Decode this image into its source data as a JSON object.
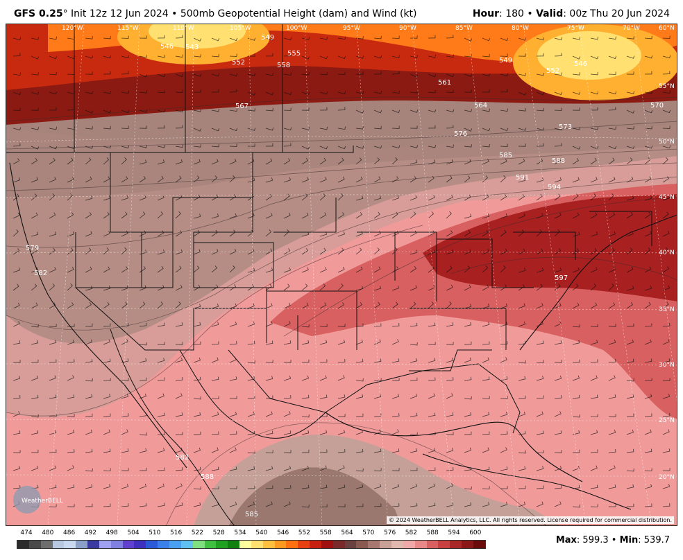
{
  "header": {
    "model": "GFS 0.25",
    "deg": "°",
    "init": "Init 12z 12 Jun 2024",
    "sep": "•",
    "product": "500mb Geopotential Height (dam) and Wind (kt)",
    "hour_label": "Hour",
    "hour_value": ": 180",
    "valid_label": "Valid",
    "valid_value": ": 00z Thu 20 Jun 2024"
  },
  "map": {
    "longitude_labels": [
      "120°W",
      "115°W",
      "110°W",
      "105°W",
      "100°W",
      "95°W",
      "90°W",
      "85°W",
      "80°W",
      "75°W",
      "70°W",
      "60°N"
    ],
    "latitude_labels": [
      "55°N",
      "50°N",
      "45°N",
      "40°N",
      "35°N",
      "30°N",
      "25°N",
      "20°N"
    ],
    "contour_labels": [
      "546",
      "543",
      "549",
      "552",
      "555",
      "558",
      "561",
      "564",
      "567",
      "570",
      "573",
      "576",
      "579",
      "582",
      "585",
      "588",
      "591",
      "594",
      "597",
      "549",
      "546",
      "552",
      "579",
      "582",
      "588",
      "585",
      "585"
    ],
    "copyright": "© 2024 WeatherBELL Analytics, LLC. All rights reserved. License required for commercial distribution.",
    "logo_text": "WeatherBELL"
  },
  "colorbar": {
    "labels": [
      "474",
      "480",
      "486",
      "492",
      "498",
      "504",
      "510",
      "516",
      "522",
      "528",
      "534",
      "540",
      "546",
      "552",
      "558",
      "564",
      "570",
      "576",
      "582",
      "588",
      "594",
      "600"
    ],
    "colors": [
      "#2b2b2b",
      "#4a4a4a",
      "#6e6e6e",
      "#b8c8e0",
      "#c8d8ee",
      "#8aa0c8",
      "#3a3aa0",
      "#a0a0f0",
      "#8080e0",
      "#6040d0",
      "#4030c0",
      "#2a5ad8",
      "#3a80e8",
      "#4aa0f0",
      "#60c0f0",
      "#80e080",
      "#40c040",
      "#20a020",
      "#108010",
      "#ffffa0",
      "#ffe070",
      "#ffc040",
      "#ff9a20",
      "#ff7010",
      "#e84010",
      "#c82010",
      "#a01010",
      "#7a2a2a",
      "#6a4040",
      "#8a5a50",
      "#a87870",
      "#c8a098",
      "#e0b8b0",
      "#f0a8a8",
      "#e88888",
      "#d86060",
      "#c84040",
      "#a82828",
      "#8a1818",
      "#6a0c0c"
    ]
  },
  "stats": {
    "max_label": "Max",
    "max_value": ": 599.3",
    "min_label": "Min",
    "min_value": ": 539.7"
  }
}
